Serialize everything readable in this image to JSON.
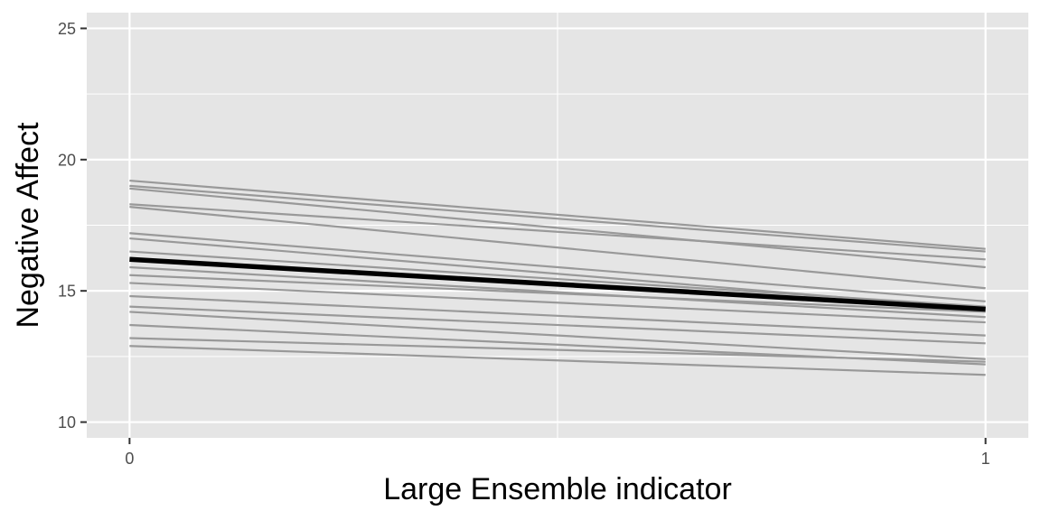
{
  "chart_data": {
    "type": "line",
    "title": "",
    "xlabel": "Large Ensemble indicator",
    "ylabel": "Negative Affect",
    "xlim": [
      -0.05,
      1.05
    ],
    "ylim": [
      9.4,
      25.6
    ],
    "x_ticks": [
      0,
      1
    ],
    "x_tick_labels": [
      "0",
      "1"
    ],
    "x_minor_gridlines": [
      0.5
    ],
    "y_ticks": [
      10,
      15,
      20,
      25
    ],
    "y_tick_labels": [
      "10",
      "15",
      "20",
      "25"
    ],
    "y_minor_gridlines": [
      12.5,
      17.5,
      22.5
    ],
    "grid": true,
    "legend": "none",
    "colors": {
      "panel_background": "#e5e5e5",
      "gridline": "#ffffff",
      "individual_line": "#999999",
      "average_line": "#000000",
      "tick_text": "#4d4d4d",
      "tick_mark": "#333333"
    },
    "series": [
      {
        "role": "individual",
        "values": [
          19.2,
          16.6
        ]
      },
      {
        "role": "individual",
        "values": [
          19.0,
          16.5
        ]
      },
      {
        "role": "individual",
        "values": [
          18.9,
          15.9
        ]
      },
      {
        "role": "individual",
        "values": [
          18.3,
          16.2
        ]
      },
      {
        "role": "individual",
        "values": [
          18.2,
          15.1
        ]
      },
      {
        "role": "individual",
        "values": [
          17.2,
          14.6
        ]
      },
      {
        "role": "individual",
        "values": [
          17.0,
          14.3
        ]
      },
      {
        "role": "individual",
        "values": [
          16.5,
          14.4
        ]
      },
      {
        "role": "individual",
        "values": [
          15.9,
          14.0
        ]
      },
      {
        "role": "individual",
        "values": [
          15.6,
          14.2
        ]
      },
      {
        "role": "individual",
        "values": [
          15.3,
          13.8
        ]
      },
      {
        "role": "individual",
        "values": [
          14.8,
          13.3
        ]
      },
      {
        "role": "individual",
        "values": [
          14.4,
          13.0
        ]
      },
      {
        "role": "individual",
        "values": [
          14.2,
          12.4
        ]
      },
      {
        "role": "individual",
        "values": [
          13.7,
          12.2
        ]
      },
      {
        "role": "individual",
        "values": [
          13.2,
          12.3
        ]
      },
      {
        "role": "individual",
        "values": [
          12.9,
          11.8
        ]
      },
      {
        "role": "average",
        "values": [
          16.2,
          14.3
        ]
      }
    ]
  }
}
